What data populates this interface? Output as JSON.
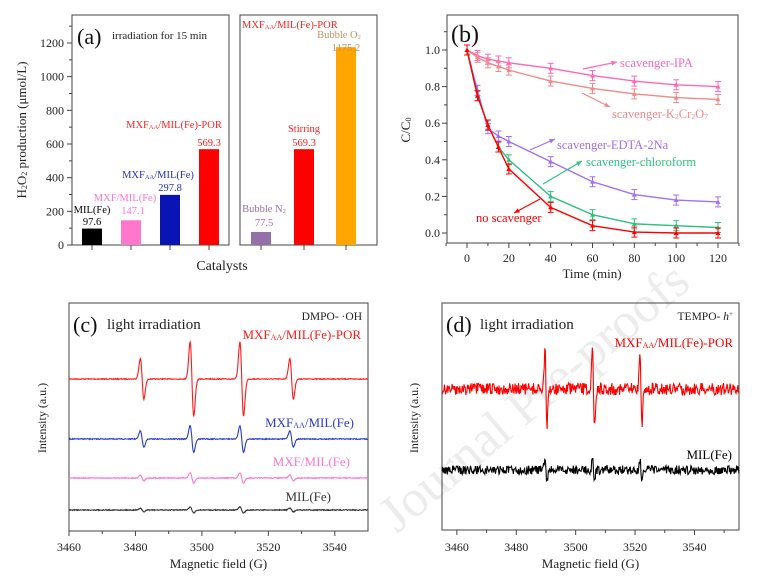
{
  "watermark": "Journal Pre-proofs",
  "chart_data": [
    {
      "panel": "(a)",
      "type": "bar",
      "annotation": "irradiation for 15 min",
      "ylabel": [
        [
          "H"
        ],
        [
          "2",
          1
        ],
        [
          "O"
        ],
        [
          "2",
          1
        ],
        [
          " production (μmol/L)"
        ]
      ],
      "xlabel": "Catalysts",
      "ylim": [
        0,
        1350
      ],
      "yticks": [
        0,
        200,
        400,
        600,
        800,
        1000,
        1200
      ],
      "groups": [
        {
          "bars": [
            {
              "label": [
                [
                  "MIL(Fe)"
                ]
              ],
              "value": 97.6,
              "value_label": "97.6",
              "color": "#000000",
              "label_color": "#000000"
            },
            {
              "label": [
                [
                  "MXF/MIL(Fe)"
                ]
              ],
              "value": 147.1,
              "value_label": "147.1",
              "color": "#ff77cc",
              "label_color": "#ff77cc"
            },
            {
              "label": [
                [
                  "MXF"
                ],
                [
                  "AA",
                  1
                ],
                [
                  "/MIL(Fe)"
                ]
              ],
              "value": 297.8,
              "value_label": "297.8",
              "color": "#0a14b4",
              "label_color": "#2030c0"
            },
            {
              "label": [
                [
                  "MXF"
                ],
                [
                  "AA",
                  1
                ],
                [
                  "/MIL(Fe)-POR"
                ]
              ],
              "value": 569.3,
              "value_label": "569.3",
              "color": "#ff0000",
              "label_color": "#ff2020"
            }
          ]
        },
        {
          "title": [
            [
              "MXF"
            ],
            [
              "AA",
              1
            ],
            [
              "/MIL(Fe)-POR"
            ]
          ],
          "title_color": "#ff2020",
          "bars": [
            {
              "label": [
                [
                  "Bubble N"
                ],
                [
                  "2",
                  1
                ]
              ],
              "value": 77.5,
              "value_label": "77.5",
              "color": "#9570a8",
              "label_color": "#9570a8"
            },
            {
              "label": [
                [
                  "Stirring"
                ]
              ],
              "value": 569.3,
              "value_label": "569.3",
              "color": "#ff0000",
              "label_color": "#ff2020"
            },
            {
              "label": [
                [
                  "Bubble O"
                ],
                [
                  "2",
                  1
                ]
              ],
              "value": 1175.2,
              "value_label": "1175.2",
              "color": "#ffa500",
              "label_color": "#c89060"
            }
          ]
        }
      ]
    },
    {
      "panel": "(b)",
      "type": "line",
      "xlabel": "Time (min)",
      "ylabel": [
        [
          "C/C"
        ],
        [
          "0",
          1
        ]
      ],
      "xlim": [
        -10,
        130
      ],
      "ylim": [
        -0.05,
        1.19
      ],
      "xticks": [
        0,
        20,
        40,
        60,
        80,
        100,
        120
      ],
      "yticks": [
        0.0,
        0.2,
        0.4,
        0.6,
        0.8,
        1.0
      ],
      "x": [
        0,
        5,
        10,
        15,
        20,
        40,
        60,
        80,
        100,
        120
      ],
      "series": [
        {
          "name": [
            [
              "scavenger-IPA"
            ]
          ],
          "color": "#ff66bb",
          "values": [
            1.0,
            0.97,
            0.95,
            0.94,
            0.93,
            0.9,
            0.86,
            0.83,
            0.81,
            0.8
          ]
        },
        {
          "name": [
            [
              "scavenger-K"
            ],
            [
              "2",
              1
            ],
            [
              "Cr"
            ],
            [
              "2",
              1
            ],
            [
              "O"
            ],
            [
              "7",
              1
            ]
          ],
          "color": "#f08a8a",
          "values": [
            1.0,
            0.96,
            0.93,
            0.91,
            0.89,
            0.83,
            0.79,
            0.76,
            0.74,
            0.73
          ]
        },
        {
          "name": [
            [
              "scavenger-EDTA-2Na"
            ]
          ],
          "color": "#a070f0",
          "values": [
            1.0,
            0.78,
            0.57,
            0.53,
            0.5,
            0.39,
            0.28,
            0.21,
            0.18,
            0.17
          ]
        },
        {
          "name": [
            [
              "scavenger-chloroform"
            ]
          ],
          "color": "#30c080",
          "values": [
            1.0,
            0.75,
            0.59,
            0.47,
            0.4,
            0.2,
            0.1,
            0.05,
            0.04,
            0.03
          ]
        },
        {
          "name": [
            [
              "no scavenger"
            ]
          ],
          "color": "#ff0000",
          "values": [
            1.0,
            0.75,
            0.59,
            0.47,
            0.35,
            0.14,
            0.04,
            0.005,
            0.0,
            0.0
          ]
        }
      ]
    },
    {
      "panel": "(c)",
      "type": "line",
      "annotation": "light irradiation",
      "probe": "DMPO- ·OH",
      "xlabel": "Magnetic field (G)",
      "ylabel": "Intensity (a.u.)",
      "xlim": [
        3460,
        3550
      ],
      "xticks": [
        3460,
        3480,
        3500,
        3520,
        3540
      ],
      "peak_positions_G": [
        3482,
        3497,
        3512,
        3527
      ],
      "series": [
        {
          "name": [
            [
              "MXF"
            ],
            [
              "AA",
              1
            ],
            [
              "/MIL(Fe)-POR"
            ]
          ],
          "color": "#ff1a1a",
          "relative_peak_intensity": [
            0.55,
            1.0,
            1.0,
            0.55
          ]
        },
        {
          "name": [
            [
              "MXF"
            ],
            [
              "AA",
              1
            ],
            [
              "/MIL(Fe)"
            ]
          ],
          "color": "#2a3cc8",
          "relative_peak_intensity": [
            0.22,
            0.36,
            0.36,
            0.22
          ]
        },
        {
          "name": [
            [
              "MXF/MIL(Fe)"
            ]
          ],
          "color": "#ff77cc",
          "relative_peak_intensity": [
            0.08,
            0.14,
            0.14,
            0.08
          ]
        },
        {
          "name": [
            [
              "MIL(Fe)"
            ]
          ],
          "color": "#333333",
          "relative_peak_intensity": [
            0.05,
            0.08,
            0.08,
            0.05
          ]
        }
      ]
    },
    {
      "panel": "(d)",
      "type": "line",
      "annotation": "light irradiation",
      "probe": [
        [
          "TEMPO- "
        ],
        [
          "h",
          2
        ],
        [
          "+",
          3
        ]
      ],
      "xlabel": "Magnetic field (G)",
      "ylabel": "Intensity (a.u.)",
      "xlim": [
        3455,
        3555
      ],
      "xticks": [
        3460,
        3480,
        3500,
        3520,
        3540
      ],
      "peak_positions_G": [
        3490,
        3506,
        3522
      ],
      "series": [
        {
          "name": [
            [
              "MXF"
            ],
            [
              "AA",
              1
            ],
            [
              "/MIL(Fe)-POR"
            ]
          ],
          "color": "#ff0000",
          "relative_peak_intensity": [
            1.0,
            0.95,
            0.9
          ]
        },
        {
          "name": [
            [
              "MIL(Fe)"
            ]
          ],
          "color": "#000000",
          "relative_peak_intensity": [
            0.3,
            0.25,
            0.25
          ]
        }
      ]
    }
  ]
}
